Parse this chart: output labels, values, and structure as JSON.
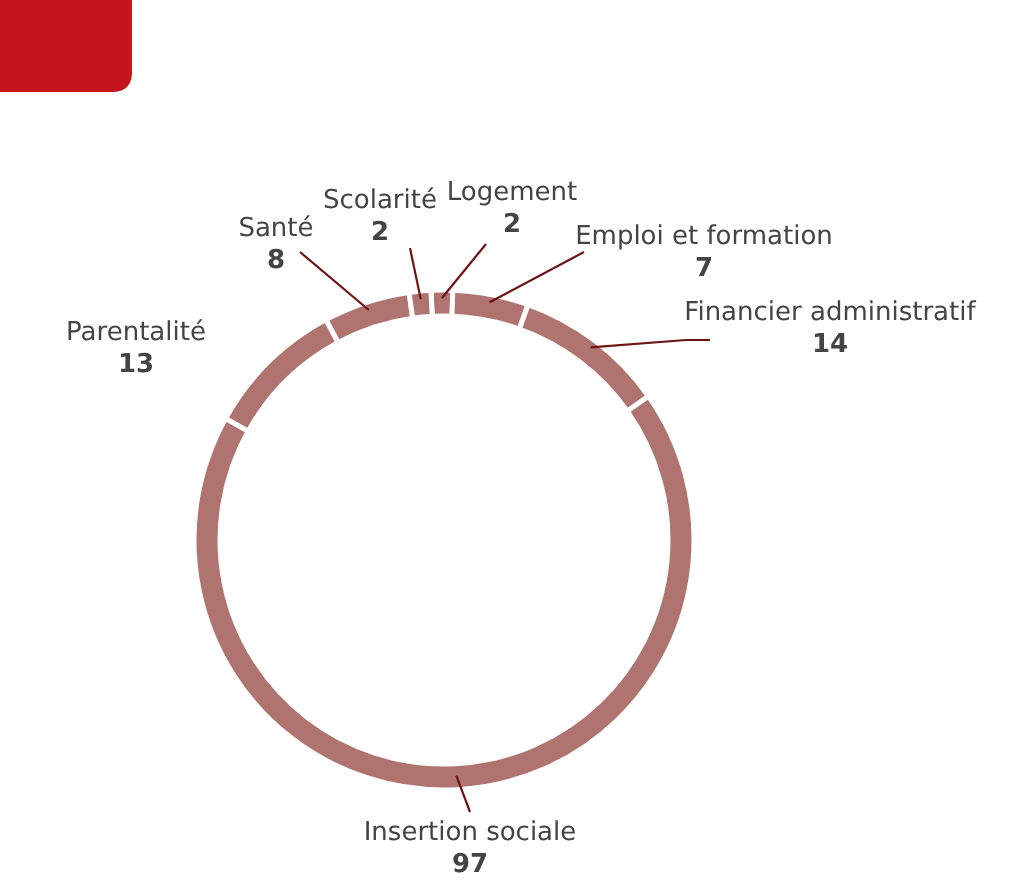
{
  "chart_data": {
    "type": "donut",
    "categories": [
      "Logement",
      "Emploi et formation",
      "Financier administratif",
      "Insertion sociale",
      "Parentalité",
      "Santé",
      "Scolarité"
    ],
    "values": [
      2,
      7,
      14,
      97,
      13,
      8,
      2
    ],
    "colors": [
      "#b07470",
      "#b07470",
      "#b07470",
      "#b07470",
      "#b07470",
      "#b07470",
      "#b07470"
    ],
    "data_labels": true
  }
}
